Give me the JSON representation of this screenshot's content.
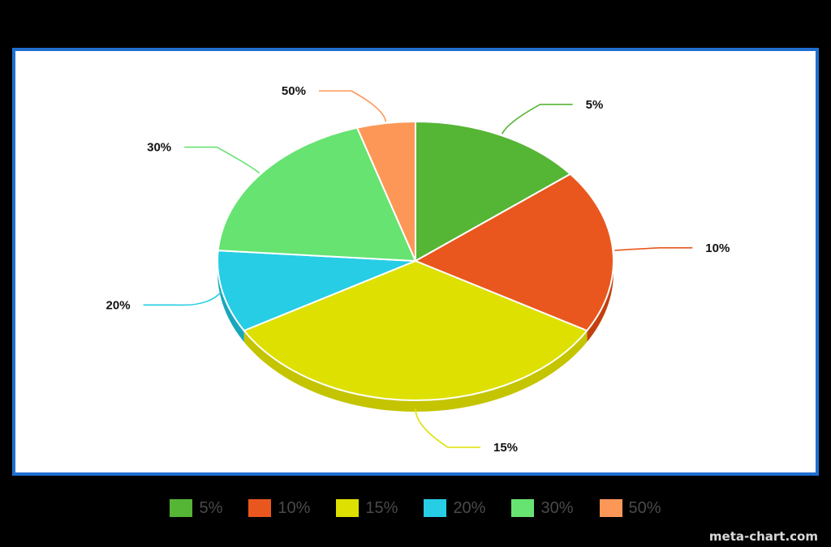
{
  "chart_data": {
    "type": "pie",
    "categories": [
      "5%",
      "10%",
      "15%",
      "20%",
      "30%",
      "50%"
    ],
    "values": [
      15,
      20,
      35,
      10,
      20,
      5
    ],
    "colors": [
      "#55b535",
      "#e9571e",
      "#dde000",
      "#27cde4",
      "#66e371",
      "#fd9758"
    ],
    "side_colors": [
      "#3e9224",
      "#c2400f",
      "#c4c400",
      "#1aa7bc",
      "#4cc057",
      "#d97740"
    ],
    "labels": [
      "5%",
      "10%",
      "15%",
      "20%",
      "30%",
      "50%"
    ],
    "legend": [
      "5%",
      "10%",
      "15%",
      "20%",
      "30%",
      "50%"
    ],
    "legend_position": "bottom",
    "style": "3d-tilted"
  },
  "watermark": "meta-chart.com"
}
